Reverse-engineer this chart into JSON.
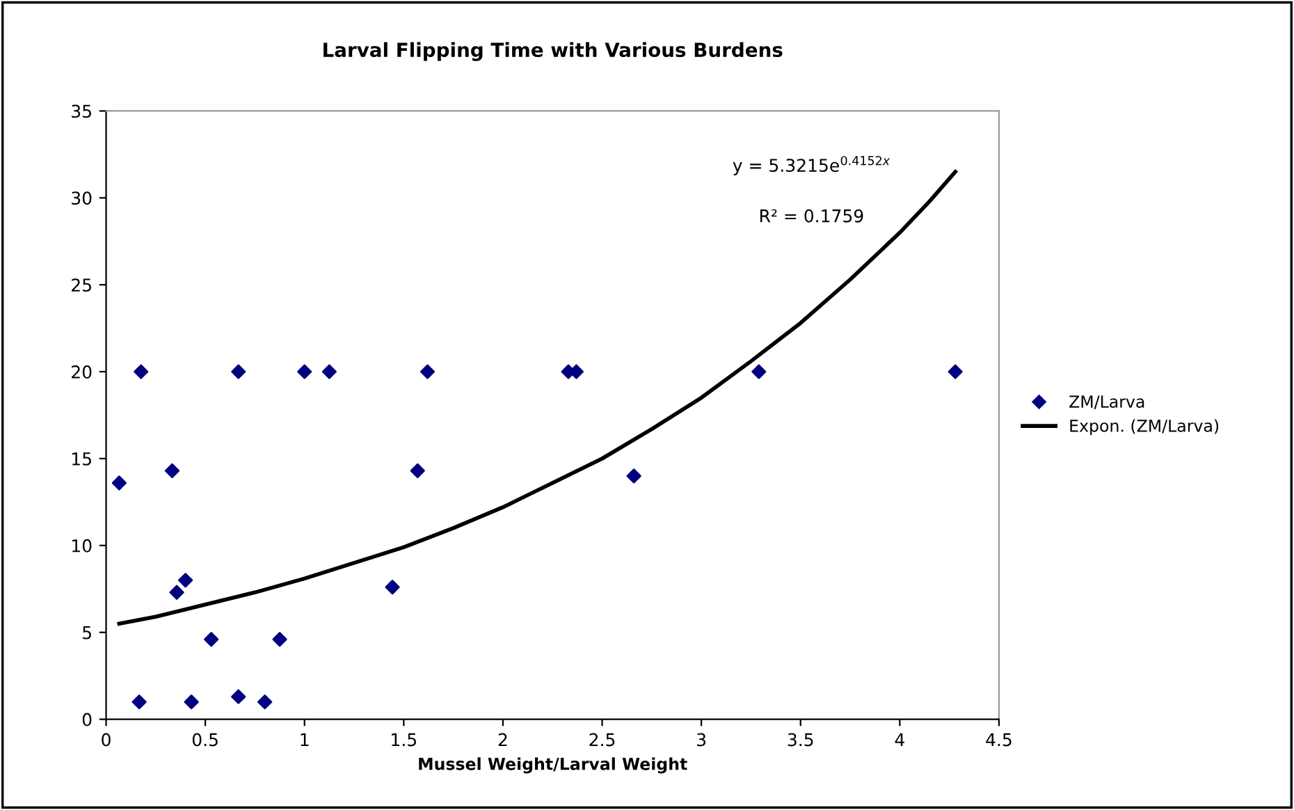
{
  "chart_data": {
    "type": "scatter",
    "title": "Larval Flipping Time with Various Burdens",
    "xlabel": "Mussel Weight/Larval Weight",
    "xlim": [
      0,
      4.5
    ],
    "xticks": [
      0,
      0.5,
      1,
      1.5,
      2,
      2.5,
      3,
      3.5,
      4,
      4.5
    ],
    "ylim": [
      0,
      35
    ],
    "yticks": [
      0,
      5,
      10,
      15,
      20,
      25,
      30,
      35
    ],
    "grid": false,
    "legend": "right",
    "marker": "diamond",
    "series": [
      {
        "name": "ZM/Larva",
        "color": "#000080",
        "x": [
          0.066,
          0.176,
          0.167,
          0.333,
          0.356,
          0.4,
          0.43,
          0.53,
          0.667,
          0.667,
          0.8,
          0.875,
          1.0,
          1.125,
          1.443,
          1.57,
          1.62,
          2.33,
          2.37,
          2.66,
          3.29,
          4.28
        ],
        "values": [
          13.6,
          20,
          1.0,
          14.3,
          7.3,
          8.0,
          1.0,
          4.6,
          20,
          1.3,
          1.0,
          4.6,
          20,
          20,
          7.6,
          14.3,
          20,
          20,
          20,
          14.0,
          20,
          20
        ]
      },
      {
        "name": "Expon. (ZM/Larva)",
        "type": "line",
        "color": "#000000",
        "marker": "none",
        "line_style": "solid",
        "x": [
          0.066,
          0.25,
          0.5,
          0.75,
          1,
          1.25,
          1.5,
          1.75,
          2,
          2.25,
          2.5,
          2.75,
          3,
          3.25,
          3.5,
          3.75,
          4,
          4.15,
          4.28
        ],
        "values": [
          5.5,
          5.9,
          6.6,
          7.3,
          8.1,
          9.0,
          9.9,
          11.0,
          12.2,
          13.6,
          15.0,
          16.7,
          18.5,
          20.6,
          22.8,
          25.3,
          28.0,
          29.8,
          31.5
        ]
      }
    ],
    "annotations": [
      "y = 5.3215e$^{0.4152x}$",
      "R² = 0.1759"
    ]
  }
}
